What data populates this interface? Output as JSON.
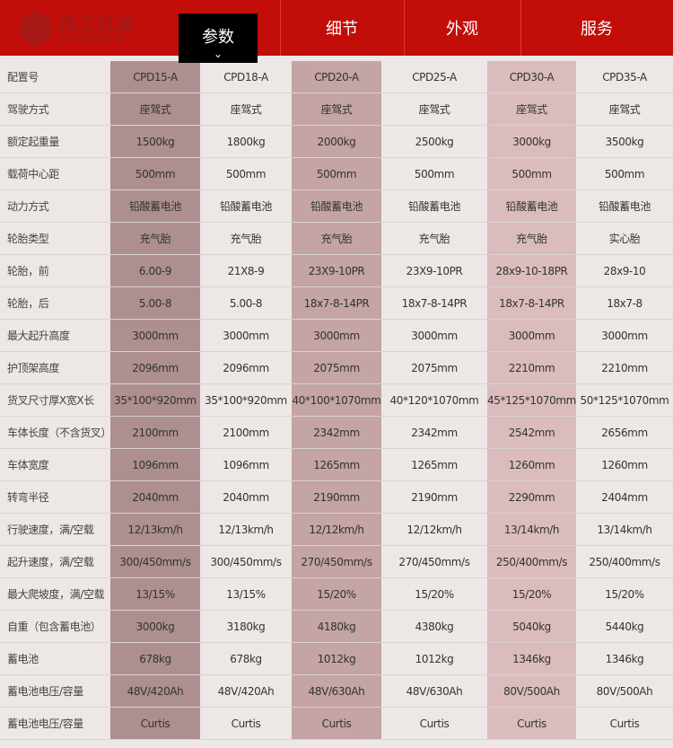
{
  "header": {
    "logo_cn": "翔工机械",
    "logo_en": "XANGON",
    "tabs": [
      {
        "label": "参数",
        "active": true
      },
      {
        "label": "细节"
      },
      {
        "label": "外观"
      },
      {
        "label": "服务"
      }
    ],
    "brand_color": "#c20d08"
  },
  "table": {
    "rows": [
      {
        "label": "配置号",
        "values": [
          "CPD15-A",
          "CPD18-A",
          "CPD20-A",
          "CPD25-A",
          "CPD30-A",
          "CPD35-A"
        ]
      },
      {
        "label": "驾驶方式",
        "values": [
          "座驾式",
          "座驾式",
          "座驾式",
          "座驾式",
          "座驾式",
          "座驾式"
        ]
      },
      {
        "label": "额定起重量",
        "values": [
          "1500kg",
          "1800kg",
          "2000kg",
          "2500kg",
          "3000kg",
          "3500kg"
        ]
      },
      {
        "label": "载荷中心距",
        "values": [
          "500mm",
          "500mm",
          "500mm",
          "500mm",
          "500mm",
          "500mm"
        ]
      },
      {
        "label": "动力方式",
        "values": [
          "铅酸蓄电池",
          "铅酸蓄电池",
          "铅酸蓄电池",
          "铅酸蓄电池",
          "铅酸蓄电池",
          "铅酸蓄电池"
        ]
      },
      {
        "label": "轮胎类型",
        "values": [
          "充气胎",
          "充气胎",
          "充气胎",
          "充气胎",
          "充气胎",
          "实心胎"
        ]
      },
      {
        "label": "轮胎，前",
        "values": [
          "6.00-9",
          "21X8-9",
          "23X9-10PR",
          "23X9-10PR",
          "28x9-10-18PR",
          "28x9-10"
        ]
      },
      {
        "label": "轮胎，后",
        "values": [
          "5.00-8",
          "5.00-8",
          "18x7-8-14PR",
          "18x7-8-14PR",
          "18x7-8-14PR",
          "18x7-8"
        ]
      },
      {
        "label": "最大起升高度",
        "values": [
          "3000mm",
          "3000mm",
          "3000mm",
          "3000mm",
          "3000mm",
          "3000mm"
        ]
      },
      {
        "label": "护顶架高度",
        "values": [
          "2096mm",
          "2096mm",
          "2075mm",
          "2075mm",
          "2210mm",
          "2210mm"
        ]
      },
      {
        "label": "货叉尺寸厚X宽X长",
        "values": [
          "35*100*920mm",
          "35*100*920mm",
          "40*100*1070mm",
          "40*120*1070mm",
          "45*125*1070mm",
          "50*125*1070mm"
        ]
      },
      {
        "label": "车体长度（不含货叉）",
        "values": [
          "2100mm",
          "2100mm",
          "2342mm",
          "2342mm",
          "2542mm",
          "2656mm"
        ]
      },
      {
        "label": "车体宽度",
        "values": [
          "1096mm",
          "1096mm",
          "1265mm",
          "1265mm",
          "1260mm",
          "1260mm"
        ]
      },
      {
        "label": "转弯半径",
        "values": [
          "2040mm",
          "2040mm",
          "2190mm",
          "2190mm",
          "2290mm",
          "2404mm"
        ]
      },
      {
        "label": "行驶速度，满/空载",
        "values": [
          "12/13km/h",
          "12/13km/h",
          "12/12km/h",
          "12/12km/h",
          "13/14km/h",
          "13/14km/h"
        ]
      },
      {
        "label": "起升速度，满/空载",
        "values": [
          "300/450mm/s",
          "300/450mm/s",
          "270/450mm/s",
          "270/450mm/s",
          "250/400mm/s",
          "250/400mm/s"
        ]
      },
      {
        "label": "最大爬坡度，满/空载",
        "values": [
          "13/15%",
          "13/15%",
          "15/20%",
          "15/20%",
          "15/20%",
          "15/20%"
        ]
      },
      {
        "label": "自重（包含蓄电池）",
        "values": [
          "3000kg",
          "3180kg",
          "4180kg",
          "4380kg",
          "5040kg",
          "5440kg"
        ]
      },
      {
        "label": "蓄电池",
        "values": [
          "678kg",
          "678kg",
          "1012kg",
          "1012kg",
          "1346kg",
          "1346kg"
        ]
      },
      {
        "label": "蓄电池电压/容量",
        "values": [
          "48V/420Ah",
          "48V/420Ah",
          "48V/630Ah",
          "48V/630Ah",
          "80V/500Ah",
          "80V/500Ah"
        ]
      },
      {
        "label": "蓄电池电压/容量",
        "values": [
          "Curtis",
          "Curtis",
          "Curtis",
          "Curtis",
          "Curtis",
          "Curtis"
        ]
      }
    ]
  }
}
